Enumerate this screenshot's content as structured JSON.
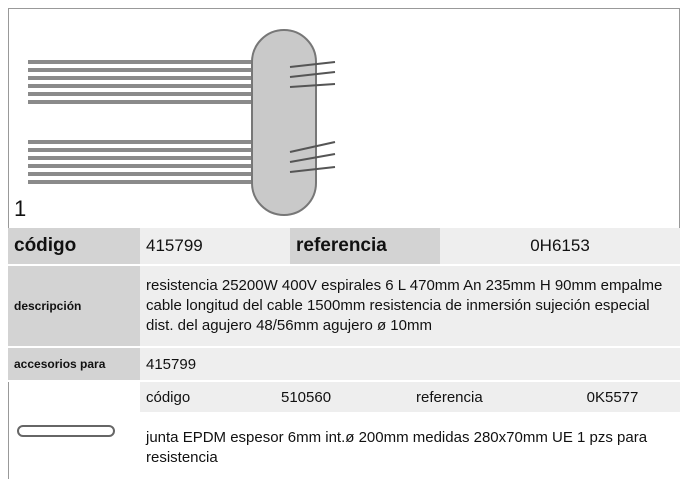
{
  "figure_label": "1",
  "product": {
    "code_label": "código",
    "code": "415799",
    "reference_label": "referencia",
    "reference": "0H6153",
    "description_label": "descripción",
    "description": "resistencia  25200W 400V espirales 6 L 470mm An 235mm H 90mm empalme cable longitud del cable  1500mm resistencia de inmersión sujeción especial dist. del agujero 48/56mm agujero ø 10mm",
    "accessories_label": "accesorios para",
    "accessories_for": "415799"
  },
  "accessory": {
    "code_label": "código",
    "code": "510560",
    "reference_label": "referencia",
    "reference": "0K5577",
    "description": "junta  EPDM espesor  6mm int.ø 200mm medidas 280x70mm UE 1 pzs para resistencia"
  }
}
